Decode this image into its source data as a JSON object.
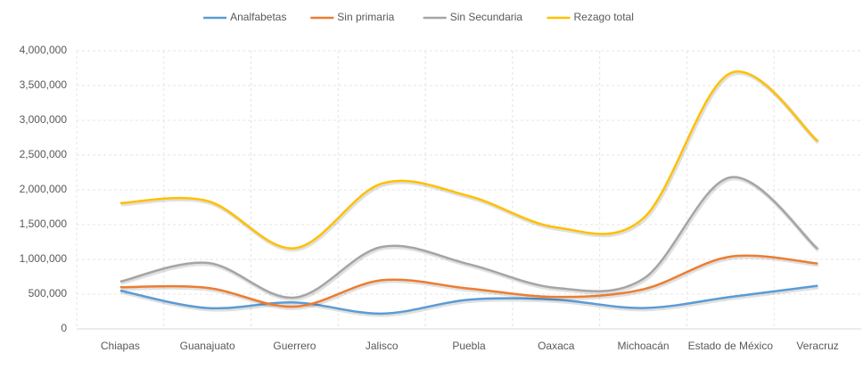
{
  "chart_data": {
    "type": "line",
    "categories": [
      "Chiapas",
      "Guanajuato",
      "Guerrero",
      "Jalisco",
      "Puebla",
      "Oaxaca",
      "Michoacán",
      "Estado de México",
      "Veracruz"
    ],
    "series": [
      {
        "name": "Analfabetas",
        "color": "#5b9bd5",
        "values": [
          550000,
          300000,
          380000,
          220000,
          420000,
          420000,
          300000,
          460000,
          620000
        ]
      },
      {
        "name": "Sin primaria",
        "color": "#ed7d31",
        "values": [
          600000,
          590000,
          320000,
          700000,
          580000,
          460000,
          570000,
          1040000,
          940000
        ]
      },
      {
        "name": "Sin Secundaria",
        "color": "#a5a5a5",
        "values": [
          680000,
          950000,
          450000,
          1180000,
          930000,
          590000,
          720000,
          2180000,
          1150000
        ]
      },
      {
        "name": "Rezago total",
        "color": "#ffc000",
        "values": [
          1810000,
          1840000,
          1160000,
          2090000,
          1910000,
          1460000,
          1590000,
          3680000,
          2700000
        ]
      }
    ],
    "ylim": [
      0,
      4000000
    ],
    "yticks": [
      0,
      {
        "value": 500000,
        "label": "500,000"
      },
      {
        "value": 1000000,
        "label": "1,000,000"
      },
      {
        "value": 1500000,
        "label": "1,500,000"
      },
      {
        "value": 2000000,
        "label": "2,000,000"
      },
      {
        "value": 2500000,
        "label": "2,500,000"
      },
      {
        "value": 3000000,
        "label": "3,000,000"
      },
      {
        "value": 3500000,
        "label": "3,500,000"
      },
      {
        "value": 4000000,
        "label": "4,000,000"
      }
    ],
    "grid": true,
    "legend": "top",
    "smooth": true
  }
}
